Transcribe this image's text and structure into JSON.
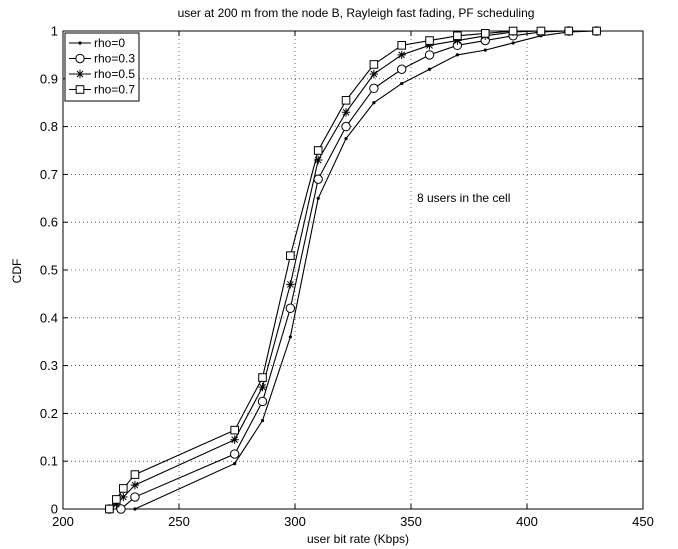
{
  "chart_data": {
    "type": "line",
    "title": "user at 200 m from the node B, Rayleigh fast fading, PF scheduling",
    "xlabel": "user bit rate (Kbps)",
    "ylabel": "CDF",
    "xlim": [
      200,
      450
    ],
    "ylim": [
      0,
      1
    ],
    "xticks": [
      200,
      250,
      300,
      350,
      400,
      450
    ],
    "yticks": [
      0,
      0.1,
      0.2,
      0.3,
      0.4,
      0.5,
      0.6,
      0.7,
      0.8,
      0.9,
      1
    ],
    "grid": true,
    "legend_position": "top-left",
    "annotation": "8 users in the cell",
    "series": [
      {
        "name": "rho=0",
        "marker": "dot",
        "x": [
          220,
          225,
          231,
          274,
          286,
          298,
          310,
          322,
          334,
          346,
          358,
          370,
          382,
          394,
          406,
          418,
          430
        ],
        "y": [
          0,
          0,
          0,
          0.095,
          0.185,
          0.36,
          0.65,
          0.775,
          0.85,
          0.89,
          0.92,
          0.95,
          0.96,
          0.975,
          0.99,
          0.998,
          1.0
        ]
      },
      {
        "name": "rho=0.3",
        "marker": "circle",
        "x": [
          220,
          225,
          231,
          274,
          286,
          298,
          310,
          322,
          334,
          346,
          358,
          370,
          382,
          394,
          406,
          418,
          430
        ],
        "y": [
          0,
          0,
          0.025,
          0.115,
          0.225,
          0.42,
          0.69,
          0.8,
          0.88,
          0.92,
          0.95,
          0.97,
          0.98,
          0.99,
          0.998,
          1.0,
          1.0
        ]
      },
      {
        "name": "rho=0.5",
        "marker": "star",
        "x": [
          220,
          223,
          226,
          231,
          274,
          286,
          298,
          310,
          322,
          334,
          346,
          358,
          370,
          382,
          394,
          406,
          418,
          430
        ],
        "y": [
          0,
          0.01,
          0.025,
          0.05,
          0.145,
          0.255,
          0.47,
          0.73,
          0.83,
          0.91,
          0.95,
          0.97,
          0.98,
          0.99,
          0.998,
          1.0,
          1.0,
          1.0
        ]
      },
      {
        "name": "rho=0.7",
        "marker": "square",
        "x": [
          220,
          223,
          226,
          231,
          274,
          286,
          298,
          310,
          322,
          334,
          346,
          358,
          370,
          382,
          394,
          406,
          418,
          430
        ],
        "y": [
          0,
          0.02,
          0.043,
          0.072,
          0.165,
          0.275,
          0.53,
          0.75,
          0.855,
          0.93,
          0.97,
          0.98,
          0.99,
          0.995,
          1.0,
          1.0,
          1.0,
          1.0
        ]
      }
    ]
  }
}
